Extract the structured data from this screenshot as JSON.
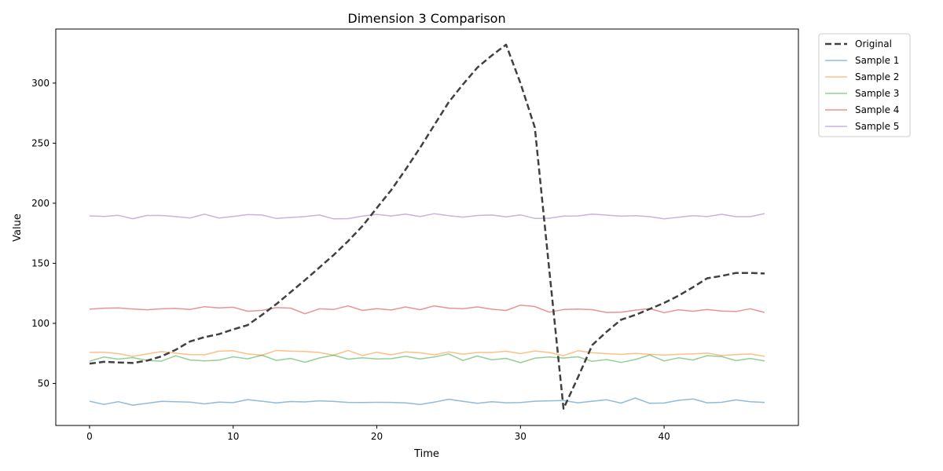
{
  "chart_data": {
    "type": "line",
    "title": "Dimension 3 Comparison",
    "xlabel": "Time",
    "ylabel": "Value",
    "xlim": [
      -2.35,
      49.35
    ],
    "ylim": [
      15,
      345
    ],
    "xticks": [
      0,
      10,
      20,
      30,
      40
    ],
    "yticks": [
      50,
      100,
      150,
      200,
      250,
      300
    ],
    "legend_position": "outside-top-right",
    "grid": false,
    "x": [
      0,
      1,
      2,
      3,
      4,
      5,
      6,
      7,
      8,
      9,
      10,
      11,
      12,
      13,
      14,
      15,
      16,
      17,
      18,
      19,
      20,
      21,
      22,
      23,
      24,
      25,
      26,
      27,
      28,
      29,
      30,
      31,
      32,
      33,
      34,
      35,
      36,
      37,
      38,
      39,
      40,
      41,
      42,
      43,
      44,
      45,
      46,
      47
    ],
    "series": [
      {
        "name": "Original",
        "color": "#404040",
        "style": "dashed",
        "values": [
          66.5,
          68,
          67.5,
          67,
          69,
          72.5,
          78,
          85,
          88.5,
          91,
          95,
          98.5,
          107,
          116,
          126,
          136,
          146.5,
          157,
          168.5,
          181,
          196,
          211,
          228,
          246,
          265,
          284,
          299,
          313,
          323,
          332,
          300,
          263,
          145,
          29,
          55,
          82,
          93,
          103,
          107,
          112,
          117,
          123,
          130,
          137.5,
          139.5,
          142,
          142,
          141.5
        ]
      },
      {
        "name": "Sample 1",
        "color": "#1f77b4",
        "values": [
          35.2,
          32.5,
          34.8,
          31.9,
          33.4,
          35.1,
          34.8,
          34.5,
          33,
          34.5,
          34,
          36.5,
          35.2,
          33.8,
          34.9,
          34.6,
          35.5,
          35,
          34.2,
          34.1,
          34.3,
          34.2,
          33.8,
          32.5,
          34.4,
          36.8,
          35.1,
          33.5,
          34.8,
          33.9,
          34.1,
          35.2,
          35.5,
          35.8,
          33.9,
          35.2,
          36.4,
          33.6,
          37.9,
          33.4,
          33.7,
          35.9,
          37.1,
          33.9,
          34.3,
          36.3,
          34.8,
          34.2
        ]
      },
      {
        "name": "Sample 2",
        "color": "#ff7f0e",
        "values": [
          75.8,
          76,
          74.8,
          72.5,
          74.5,
          76.5,
          75.2,
          74,
          73.8,
          76.8,
          77.2,
          74.5,
          73.5,
          77.5,
          76.8,
          76.6,
          75.8,
          73.5,
          77.5,
          73.2,
          76,
          73.8,
          76.2,
          75.5,
          73.8,
          76.2,
          74.3,
          75.8,
          75.8,
          76.8,
          74.8,
          77,
          75.8,
          73.1,
          77.2,
          75.5,
          74.8,
          74.2,
          75,
          74.2,
          73.6,
          74.2,
          74.6,
          75.2,
          73.2,
          74,
          74.5,
          72.6
        ]
      },
      {
        "name": "Sample 3",
        "color": "#2ca02c",
        "values": [
          68.5,
          72,
          70.2,
          71.5,
          69.2,
          68.5,
          73,
          69.5,
          68.8,
          69.4,
          72.2,
          70.5,
          73.5,
          69.2,
          70.8,
          67.6,
          71.2,
          73.5,
          70.2,
          71.3,
          70.4,
          70.6,
          72.6,
          70.4,
          72,
          74.6,
          69.1,
          72.8,
          69.6,
          70.9,
          67.3,
          71,
          72,
          71.1,
          72.2,
          68.4,
          69.9,
          67.5,
          69.9,
          73.7,
          68.7,
          71.3,
          69.5,
          73.1,
          72.4,
          69,
          70.8,
          68.8
        ]
      },
      {
        "name": "Sample 4",
        "color": "#d62728",
        "values": [
          111.8,
          112.6,
          112.8,
          112,
          111.3,
          112.1,
          112.4,
          111.6,
          113.9,
          112.9,
          113.4,
          110.1,
          110.8,
          113.1,
          112.7,
          108,
          112.1,
          111.6,
          114.5,
          110.8,
          112.2,
          111.1,
          113.7,
          111.4,
          114.5,
          112.7,
          112.2,
          113.7,
          111.8,
          110.7,
          115.2,
          114,
          109.3,
          111.5,
          111.9,
          111.4,
          109.1,
          109.2,
          111,
          112.3,
          108.9,
          111.3,
          110.1,
          111.5,
          110.3,
          109.9,
          112.2,
          109.1
        ]
      },
      {
        "name": "Sample 5",
        "color": "#9467bd",
        "values": [
          189.4,
          189,
          189.9,
          187.1,
          189.8,
          189.8,
          188.9,
          187.7,
          190.9,
          187.7,
          189,
          190.5,
          190.2,
          187.3,
          188.2,
          188.9,
          190.2,
          187,
          187.2,
          189.3,
          190.7,
          189.4,
          190.9,
          188.9,
          191.3,
          189.6,
          188.4,
          189.8,
          190.2,
          188.7,
          190.3,
          187.3,
          187.5,
          189.3,
          189.4,
          190.9,
          190.1,
          189.2,
          189.7,
          188.8,
          187,
          188.3,
          189.7,
          188.9,
          190.8,
          188.8,
          188.8,
          191.4
        ]
      }
    ]
  }
}
